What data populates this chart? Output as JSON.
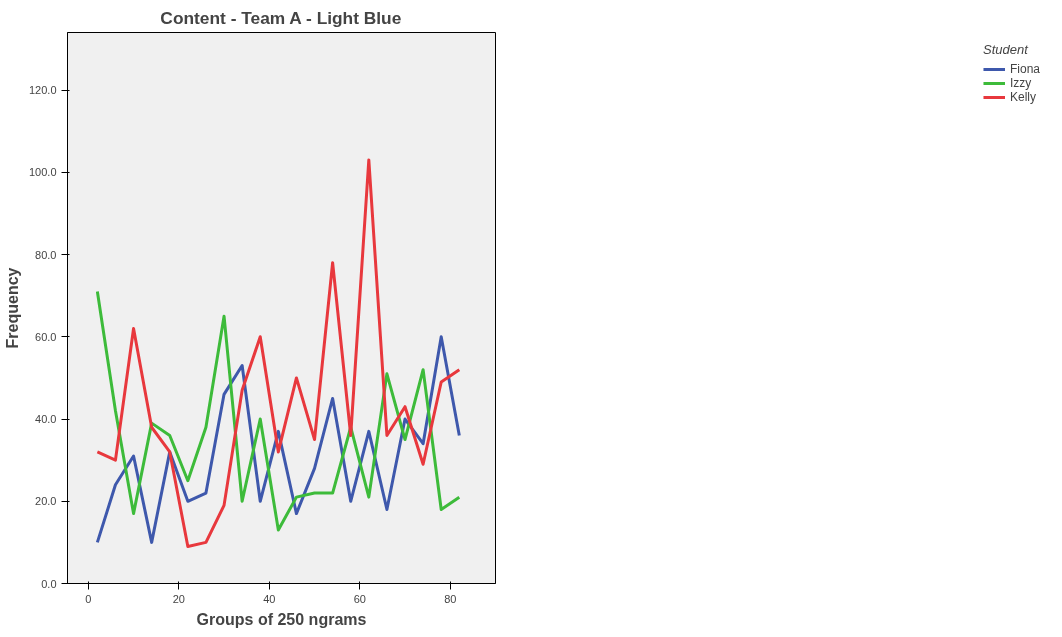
{
  "chart_data": {
    "type": "line",
    "title": "Content - Team A - Light Blue",
    "xlabel": "Groups of 250 ngrams",
    "ylabel": "Frequency",
    "legend_title": "Student",
    "legend": "right",
    "grid": false,
    "x": [
      2,
      6,
      10,
      14,
      18,
      22,
      26,
      30,
      34,
      38,
      42,
      46,
      50,
      54,
      58,
      62,
      66,
      70,
      74,
      78,
      82
    ],
    "series": [
      {
        "name": "Fiona",
        "color": "#3e58ac",
        "values": [
          10,
          24,
          31,
          10,
          32,
          20,
          22,
          46,
          53,
          20,
          37,
          17,
          28,
          45,
          20,
          37,
          18,
          40,
          34,
          60,
          36
        ]
      },
      {
        "name": "Izzy",
        "color": "#3dbb3a",
        "values": [
          71,
          42,
          17,
          39,
          36,
          25,
          38,
          65,
          20,
          40,
          13,
          21,
          22,
          22,
          38,
          21,
          51,
          35,
          52,
          18,
          21
        ]
      },
      {
        "name": "Kelly",
        "color": "#e8383d",
        "values": [
          32,
          30,
          62,
          38,
          32,
          9,
          10,
          19,
          47,
          60,
          32,
          50,
          35,
          78,
          36,
          103,
          36,
          43,
          29,
          49,
          52
        ]
      }
    ],
    "xlim": [
      -4.6,
      90
    ],
    "xticks": [
      0,
      20,
      40,
      60,
      80
    ],
    "ylim": [
      0,
      134
    ],
    "yticks": [
      {
        "value": 0,
        "label": "0.0"
      },
      {
        "value": 20,
        "label": "20.0"
      },
      {
        "value": 40,
        "label": "40.0"
      },
      {
        "value": 60,
        "label": "60.0"
      },
      {
        "value": 80,
        "label": "80.0"
      },
      {
        "value": 100,
        "label": "100.0"
      },
      {
        "value": 120,
        "label": "120.0"
      }
    ]
  }
}
